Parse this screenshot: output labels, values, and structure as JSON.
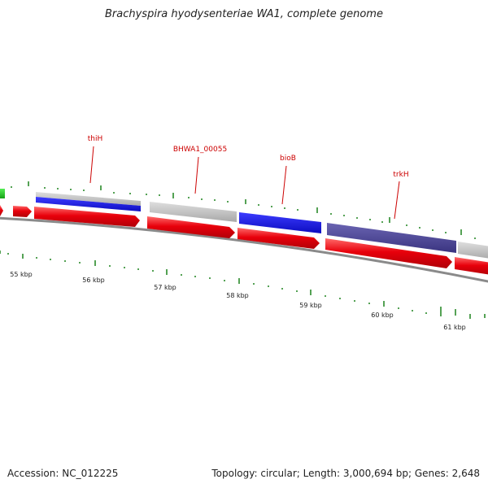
{
  "title": "Brachyspira hyodysenteriae WA1, complete genome",
  "gene_labels": [
    {
      "text": "thiH"
    },
    {
      "text": "BHWA1_00055"
    },
    {
      "text": "bioB"
    },
    {
      "text": "trkH"
    }
  ],
  "kbp_labels": [
    {
      "text": "55 kbp"
    },
    {
      "text": "56 kbp"
    },
    {
      "text": "57 kbp"
    },
    {
      "text": "58 kbp"
    },
    {
      "text": "59 kbp"
    },
    {
      "text": "60 kbp"
    },
    {
      "text": "61 kbp"
    }
  ],
  "footer": {
    "accession": "Accession: NC_012225",
    "summary": "Topology: circular; Length: 3,000,694 bp; Genes: 2,648"
  },
  "colors": {
    "cds": "#e8000b",
    "gene_gray": "#bcbcbc",
    "blue": "#1a1ae0",
    "purple": "#4b4496",
    "green": "#22cc22",
    "tick": "#2a8a2a",
    "label_red": "#cc0000",
    "backbone": "#8a8a8a"
  }
}
